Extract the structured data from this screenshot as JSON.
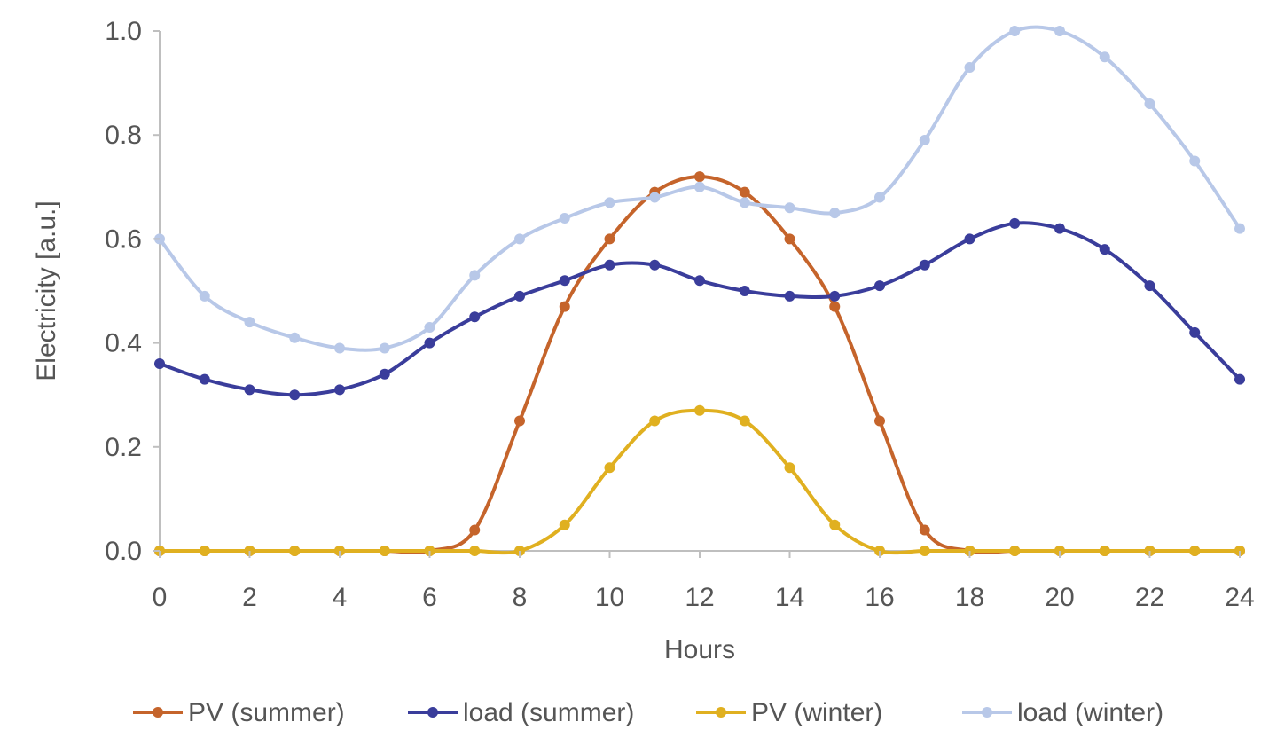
{
  "chart_data": {
    "type": "line",
    "title": "",
    "xlabel": "Hours",
    "ylabel": "Electricity [a.u.]",
    "xlim": [
      0,
      24
    ],
    "ylim": [
      0,
      1.0
    ],
    "x_ticks": [
      "0",
      "2",
      "4",
      "6",
      "8",
      "10",
      "12",
      "14",
      "16",
      "18",
      "20",
      "22",
      "24"
    ],
    "y_ticks": [
      "0.0",
      "0.2",
      "0.4",
      "0.6",
      "0.8",
      "1.0"
    ],
    "grid": "none",
    "legend_position": "bottom",
    "x": [
      0,
      1,
      2,
      3,
      4,
      5,
      6,
      7,
      8,
      9,
      10,
      11,
      12,
      13,
      14,
      15,
      16,
      17,
      18,
      19,
      20,
      21,
      22,
      23,
      24
    ],
    "series": [
      {
        "name": "PV (summer)",
        "color": "#c5642b",
        "marker": "circle",
        "values": [
          0,
          0,
          0,
          0,
          0,
          0,
          0,
          0.04,
          0.25,
          0.47,
          0.6,
          0.69,
          0.72,
          0.69,
          0.6,
          0.47,
          0.25,
          0.04,
          0,
          0,
          0,
          0,
          0,
          0,
          0
        ]
      },
      {
        "name": "load (summer)",
        "color": "#3a3d9b",
        "marker": "circle",
        "values": [
          0.36,
          0.33,
          0.31,
          0.3,
          0.31,
          0.34,
          0.4,
          0.45,
          0.49,
          0.52,
          0.55,
          0.55,
          0.52,
          0.5,
          0.49,
          0.49,
          0.51,
          0.55,
          0.6,
          0.63,
          0.62,
          0.58,
          0.51,
          0.42,
          0.33
        ]
      },
      {
        "name": "PV (winter)",
        "color": "#e0b020",
        "marker": "circle",
        "values": [
          0,
          0,
          0,
          0,
          0,
          0,
          0,
          0,
          0,
          0.05,
          0.16,
          0.25,
          0.27,
          0.25,
          0.16,
          0.05,
          0,
          0,
          0,
          0,
          0,
          0,
          0,
          0,
          0
        ]
      },
      {
        "name": "load (winter)",
        "color": "#b8c8e8",
        "marker": "circle",
        "values": [
          0.6,
          0.49,
          0.44,
          0.41,
          0.39,
          0.39,
          0.43,
          0.53,
          0.6,
          0.64,
          0.67,
          0.68,
          0.7,
          0.67,
          0.66,
          0.65,
          0.68,
          0.79,
          0.93,
          1.0,
          1.0,
          0.95,
          0.86,
          0.75,
          0.62
        ]
      }
    ]
  }
}
